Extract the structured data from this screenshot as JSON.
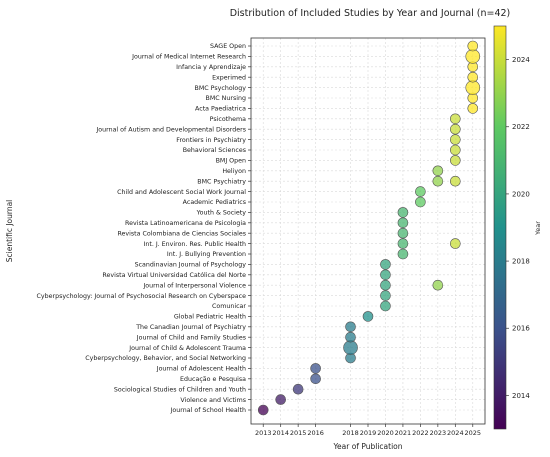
{
  "chart_data": {
    "type": "scatter",
    "title": "Distribution of Included Studies by Year and Journal (n=42)",
    "xlabel": "Year of Publication",
    "ylabel": "Scientific Journal",
    "colorbar_label": "Year",
    "x_ticks": [
      2013,
      2014,
      2015,
      2016,
      2018,
      2019,
      2020,
      2021,
      2022,
      2023,
      2024,
      2025
    ],
    "xlim": [
      2012.3,
      2025.7
    ],
    "colorbar_range": [
      2013,
      2025
    ],
    "colorbar_ticks": [
      2014,
      2016,
      2018,
      2020,
      2022,
      2024
    ],
    "colormap": [
      "#440154",
      "#3b528b",
      "#21918c",
      "#5ec962",
      "#fde725"
    ],
    "grid": true,
    "legend": "none",
    "journals": [
      "Journal of School Health",
      "Violence and Victims",
      "Sociological Studies of Children and Youth",
      "Educação e Pesquisa",
      "Journal of Adolescent Health",
      "Cyberpsychology, Behavior, and Social Networking",
      "Journal of Child & Adolescent Trauma",
      "Journal of Child and Family Studies",
      "The Canadian Journal of Psychiatry",
      "Global Pediatric Health",
      "Comunicar",
      "Cyberpsychology: Journal of Psychosocial Research on Cyberspace",
      "Journal of Interpersonal Violence",
      "Revista Virtual Universidad Católica del Norte",
      "Scandinavian Journal of Psychology",
      "Int. J. Bullying Prevention",
      "Int. J. Environ. Res. Public Health",
      "Revista Colombiana de Ciencias Sociales",
      "Revista Latinoamericana de Psicologia",
      "Youth & Society",
      "Academic Pediatrics",
      "Child and Adolescent Social Work Journal",
      "BMC Psychiatry",
      "Heliyon",
      "BMJ Open",
      "Behavioral Sciences",
      "Frontiers in Psychiatry",
      "Journal of Autism and Developmental Disorders",
      "Psicothema",
      "Acta Paediatrica",
      "BMC Nursing",
      "BMC Psychology",
      "Experimed",
      "Infancia y Aprendizaje",
      "Journal of Medical Internet Research",
      "SAGE Open"
    ],
    "points": [
      {
        "journal": "Journal of School Health",
        "year": 2013,
        "count": 1
      },
      {
        "journal": "Violence and Victims",
        "year": 2014,
        "count": 1
      },
      {
        "journal": "Sociological Studies of Children and Youth",
        "year": 2015,
        "count": 1
      },
      {
        "journal": "Educação e Pesquisa",
        "year": 2016,
        "count": 1
      },
      {
        "journal": "Journal of Adolescent Health",
        "year": 2016,
        "count": 1
      },
      {
        "journal": "Cyberpsychology, Behavior, and Social Networking",
        "year": 2018,
        "count": 1
      },
      {
        "journal": "Journal of Child & Adolescent Trauma",
        "year": 2018,
        "count": 2
      },
      {
        "journal": "Journal of Child and Family Studies",
        "year": 2018,
        "count": 1
      },
      {
        "journal": "The Canadian Journal of Psychiatry",
        "year": 2018,
        "count": 1
      },
      {
        "journal": "Global Pediatric Health",
        "year": 2019,
        "count": 1
      },
      {
        "journal": "Comunicar",
        "year": 2020,
        "count": 1
      },
      {
        "journal": "Cyberpsychology: Journal of Psychosocial Research on Cyberspace",
        "year": 2020,
        "count": 1
      },
      {
        "journal": "Journal of Interpersonal Violence",
        "year": 2020,
        "count": 1
      },
      {
        "journal": "Journal of Interpersonal Violence",
        "year": 2023,
        "count": 1
      },
      {
        "journal": "Revista Virtual Universidad Católica del Norte",
        "year": 2020,
        "count": 1
      },
      {
        "journal": "Scandinavian Journal of Psychology",
        "year": 2020,
        "count": 1
      },
      {
        "journal": "Int. J. Bullying Prevention",
        "year": 2021,
        "count": 1
      },
      {
        "journal": "Int. J. Environ. Res. Public Health",
        "year": 2021,
        "count": 1
      },
      {
        "journal": "Int. J. Environ. Res. Public Health",
        "year": 2024,
        "count": 1
      },
      {
        "journal": "Revista Colombiana de Ciencias Sociales",
        "year": 2021,
        "count": 1
      },
      {
        "journal": "Revista Latinoamericana de Psicologia",
        "year": 2021,
        "count": 1
      },
      {
        "journal": "Youth & Society",
        "year": 2021,
        "count": 1
      },
      {
        "journal": "Academic Pediatrics",
        "year": 2022,
        "count": 1
      },
      {
        "journal": "Child and Adolescent Social Work Journal",
        "year": 2022,
        "count": 1
      },
      {
        "journal": "BMC Psychiatry",
        "year": 2023,
        "count": 1
      },
      {
        "journal": "BMC Psychiatry",
        "year": 2024,
        "count": 1
      },
      {
        "journal": "Heliyon",
        "year": 2023,
        "count": 1
      },
      {
        "journal": "BMJ Open",
        "year": 2024,
        "count": 1
      },
      {
        "journal": "Behavioral Sciences",
        "year": 2024,
        "count": 1
      },
      {
        "journal": "Frontiers in Psychiatry",
        "year": 2024,
        "count": 1
      },
      {
        "journal": "Journal of Autism and Developmental Disorders",
        "year": 2024,
        "count": 1
      },
      {
        "journal": "Psicothema",
        "year": 2024,
        "count": 1
      },
      {
        "journal": "Acta Paediatrica",
        "year": 2025,
        "count": 1
      },
      {
        "journal": "BMC Nursing",
        "year": 2025,
        "count": 1
      },
      {
        "journal": "BMC Psychology",
        "year": 2025,
        "count": 2
      },
      {
        "journal": "Experimed",
        "year": 2025,
        "count": 1
      },
      {
        "journal": "Infancia y Aprendizaje",
        "year": 2025,
        "count": 1
      },
      {
        "journal": "Journal of Medical Internet Research",
        "year": 2025,
        "count": 2
      },
      {
        "journal": "SAGE Open",
        "year": 2025,
        "count": 1
      }
    ]
  }
}
